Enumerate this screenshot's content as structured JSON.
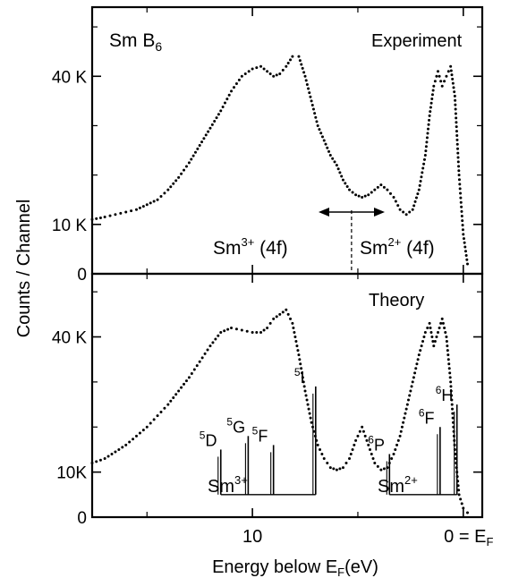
{
  "figure": {
    "ylabel": "Counts / Channel",
    "xlabel_prefix": "Energy  below  E",
    "xlabel_sub": "F",
    "xlabel_suffix": "(eV)",
    "x_ticks": [
      {
        "value": 10,
        "label": "10"
      },
      {
        "value": 0,
        "label": "0 = E",
        "sub": "F"
      }
    ]
  },
  "chart_data": [
    {
      "type": "scatter",
      "title": "Sm B",
      "title_sub": "6",
      "panel_label": "Experiment",
      "xlim": [
        17.6,
        -0.9
      ],
      "ylim": [
        0,
        54
      ],
      "y_ticks": [
        {
          "value": 0,
          "label": "0"
        },
        {
          "value": 10,
          "label": "10 K"
        },
        {
          "value": 40,
          "label": "40 K"
        }
      ],
      "annotations": {
        "left_label": "Sm",
        "left_sup": "3+",
        "left_suffix": " (4f)",
        "right_label": "Sm",
        "right_sup": "2+",
        "right_suffix": " (4f)",
        "divider_x": 5.3
      },
      "series": [
        {
          "x": [
            17.6,
            17.0,
            16.5,
            16.0,
            15.5,
            15.0,
            14.5,
            14.0,
            13.5,
            13.0,
            12.5,
            12.0,
            11.5,
            11.0,
            10.5,
            10.0,
            9.6,
            9.3,
            9.0,
            8.7,
            8.4,
            8.1,
            7.8,
            7.5,
            7.2,
            6.9,
            6.6,
            6.3,
            6.0,
            5.7,
            5.4,
            5.1,
            4.8,
            4.5,
            4.2,
            3.9,
            3.6,
            3.3,
            3.0,
            2.7,
            2.4,
            2.1,
            1.8,
            1.6,
            1.4,
            1.2,
            1.0,
            0.8,
            0.6,
            0.4,
            0.2,
            0.0,
            -0.2
          ],
          "values": [
            11,
            11.5,
            12,
            12.5,
            13,
            14,
            15,
            17,
            19.5,
            22.5,
            26,
            29.5,
            33,
            37,
            40,
            41.5,
            42,
            41,
            40,
            40.5,
            42,
            44,
            44,
            40,
            35,
            30,
            27,
            24,
            22,
            19,
            17,
            16,
            15.5,
            16,
            17,
            18,
            17,
            15.5,
            13,
            12,
            13,
            17,
            24,
            32,
            38,
            41,
            38,
            40,
            42,
            36,
            20,
            8,
            2
          ]
        }
      ]
    },
    {
      "type": "scatter",
      "title": "",
      "panel_label": "Theory",
      "xlim": [
        17.6,
        -0.9
      ],
      "ylim": [
        0,
        54
      ],
      "y_ticks": [
        {
          "value": 0,
          "label": "0"
        },
        {
          "value": 10,
          "label": "10K"
        },
        {
          "value": 40,
          "label": "40 K"
        }
      ],
      "annotations": {
        "sm3_label": "Sm",
        "sm3_sup": "3+",
        "sm2_label": "Sm",
        "sm2_sup": "2+",
        "sm3_baseline_x": [
          11.5,
          7.0
        ],
        "sm2_baseline_x": [
          3.5,
          0.3
        ],
        "multiplets": [
          {
            "group": "sm3",
            "term": "D",
            "mult": "5",
            "x": 11.5,
            "height": 10
          },
          {
            "group": "sm3",
            "term": "G",
            "mult": "5",
            "x": 10.2,
            "height": 13
          },
          {
            "group": "sm3",
            "term": "F",
            "mult": "5",
            "x": 9.0,
            "height": 11
          },
          {
            "group": "sm3",
            "term": "I",
            "mult": "5",
            "x": 7.0,
            "height": 24
          },
          {
            "group": "sm2",
            "term": "P",
            "mult": "6",
            "x": 3.5,
            "height": 9
          },
          {
            "group": "sm2",
            "term": "F",
            "mult": "6",
            "x": 1.1,
            "height": 15
          },
          {
            "group": "sm2",
            "term": "H",
            "mult": "6",
            "x": 0.3,
            "height": 20
          }
        ]
      },
      "series": [
        {
          "x": [
            17.6,
            17.0,
            16.5,
            16.0,
            15.5,
            15.0,
            14.5,
            14.0,
            13.5,
            13.0,
            12.5,
            12.0,
            11.5,
            11.0,
            10.5,
            10.0,
            9.6,
            9.3,
            9.0,
            8.7,
            8.4,
            8.1,
            7.8,
            7.5,
            7.2,
            6.9,
            6.6,
            6.3,
            6.0,
            5.7,
            5.4,
            5.1,
            4.8,
            4.5,
            4.2,
            3.9,
            3.6,
            3.3,
            3.0,
            2.7,
            2.4,
            2.1,
            1.8,
            1.6,
            1.4,
            1.2,
            1.0,
            0.8,
            0.6,
            0.4,
            0.2,
            0.0,
            -0.2
          ],
          "values": [
            12,
            13,
            14.5,
            16,
            18,
            20,
            22.5,
            25,
            28,
            31,
            34.5,
            38,
            41,
            42,
            41.5,
            41,
            41,
            42,
            44,
            45,
            46,
            43,
            36,
            28,
            21,
            16,
            13,
            11,
            10.5,
            11,
            13,
            17,
            20,
            16,
            12,
            10.5,
            11,
            14,
            18,
            24,
            30,
            36,
            41,
            43,
            38,
            41,
            44,
            40,
            30,
            15,
            5,
            2,
            1
          ]
        }
      ]
    }
  ]
}
